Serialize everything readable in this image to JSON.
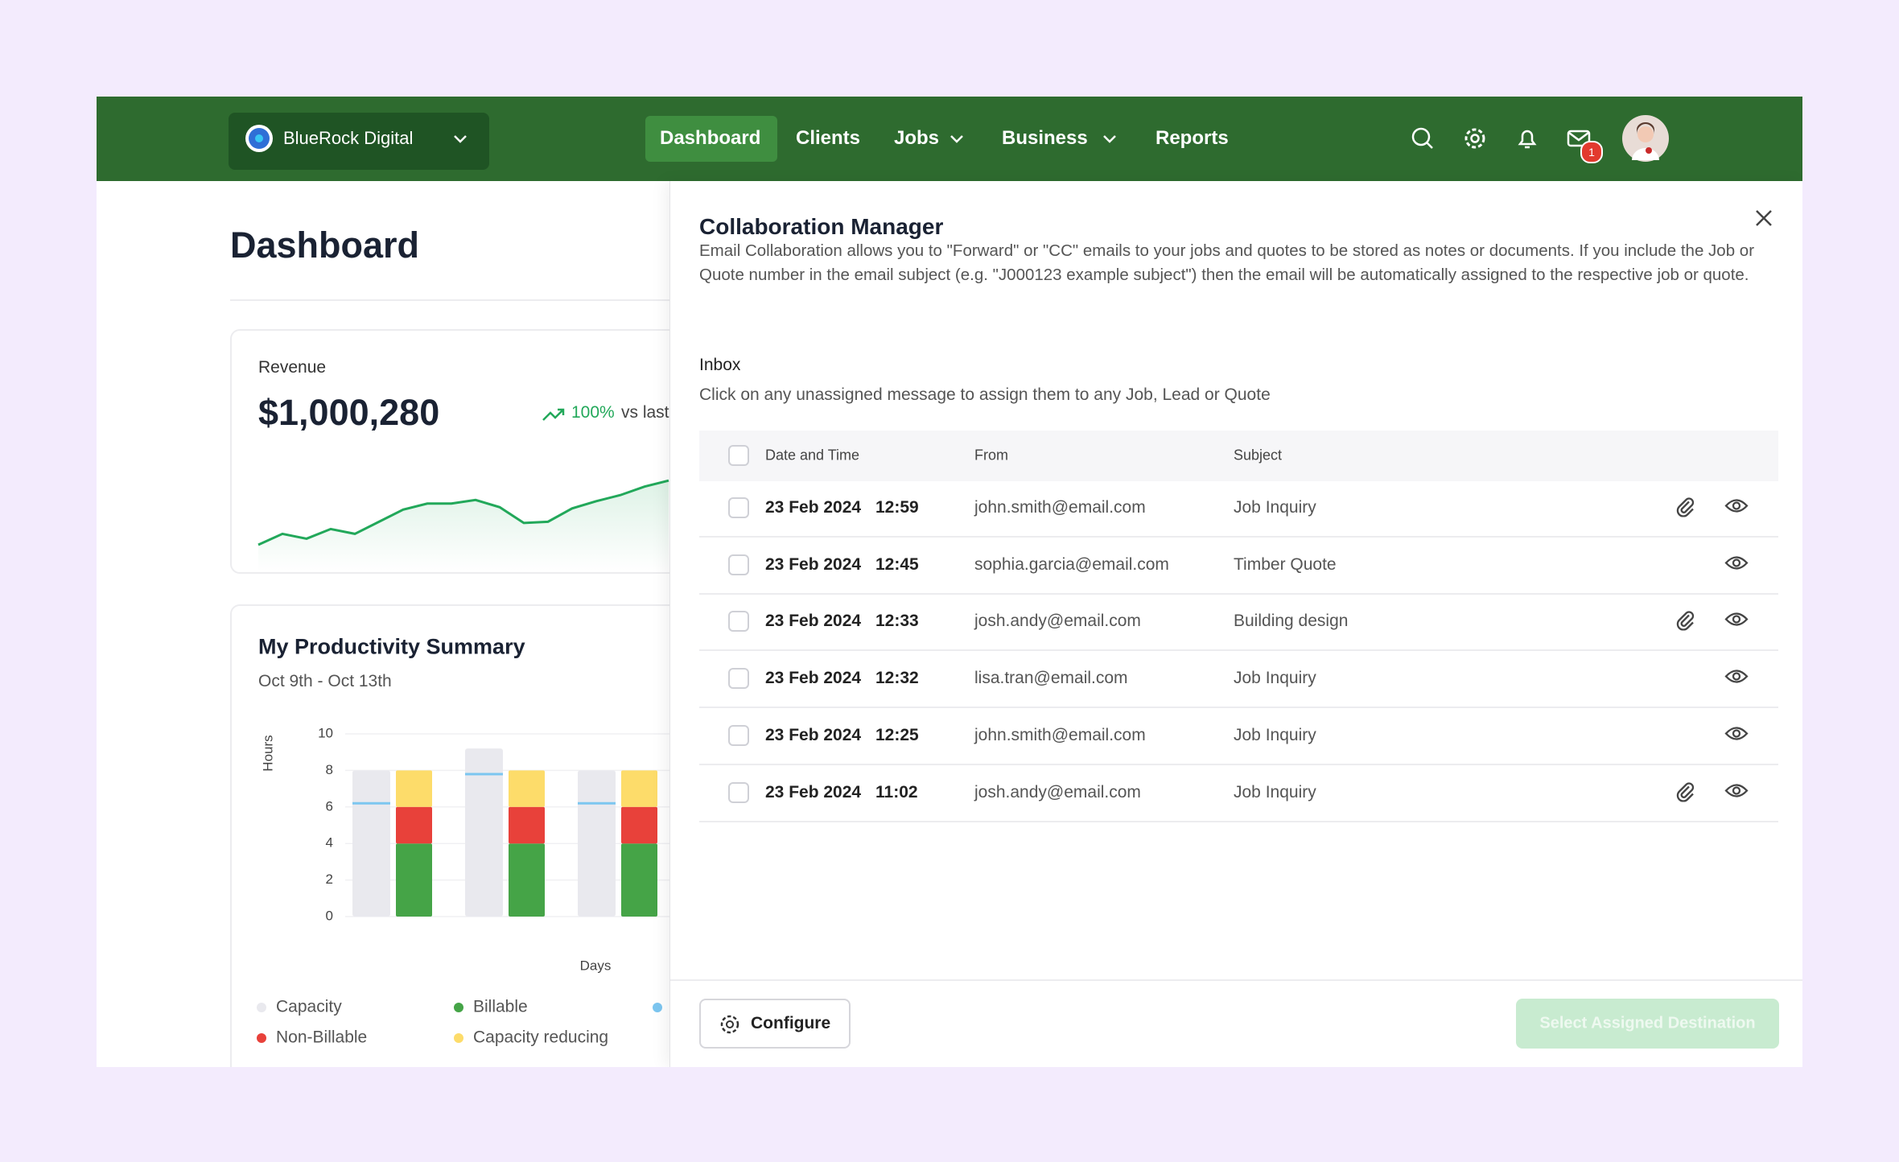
{
  "header": {
    "brand": "BlueRock Digital",
    "nav": [
      "Dashboard",
      "Clients",
      "Jobs",
      "Business",
      "Reports"
    ],
    "mail_badge": "1"
  },
  "dashboard": {
    "title": "Dashboard",
    "revenue": {
      "label": "Revenue",
      "amount": "$1,000,280",
      "change": "100%",
      "compare": "vs last"
    },
    "productivity": {
      "title": "My Productivity Summary",
      "range": "Oct 9th - Oct 13th"
    }
  },
  "chart_data": [
    {
      "type": "line",
      "color": "#22a85a",
      "values": [
        10,
        19,
        15,
        23,
        19,
        29,
        39,
        44,
        44,
        47,
        41,
        28,
        29,
        40,
        46,
        51,
        58,
        63
      ]
    },
    {
      "type": "bar",
      "ylabel": "Hours",
      "xlabel": "Days",
      "categories": [
        null,
        null,
        null
      ],
      "ylim": [
        0,
        10
      ],
      "yticks": [
        0,
        2,
        4,
        6,
        8,
        10
      ],
      "grid": true,
      "series": [
        {
          "name": "Capacity",
          "color": "#e9e9ee",
          "values": [
            8,
            9.2,
            8
          ]
        },
        {
          "name": "Billable",
          "color": "#45a447",
          "values": [
            4,
            4,
            4
          ]
        },
        {
          "name": "Non-Billable",
          "color": "#e8413a",
          "values": [
            2,
            2,
            2
          ]
        },
        {
          "name": "Capacity reducing",
          "color": "#fddc6a",
          "values": [
            2,
            2,
            2
          ]
        },
        {
          "color": "#7cc6f0",
          "values": [
            6.2,
            7.8,
            6.2
          ]
        }
      ]
    }
  ],
  "modal": {
    "title": "Collaboration Manager",
    "description": "Email Collaboration allows you to \"Forward\" or \"CC\" emails to your jobs and quotes to be stored as notes or documents. If you include the Job or Quote number in the email subject (e.g. \"J000123 example subject\") then the email will be automatically assigned to the respective job or quote.",
    "inbox_title": "Inbox",
    "inbox_hint": "Click on any unassigned message to assign them to any Job, Lead or Quote",
    "columns": [
      "Date and Time",
      "From",
      "Subject"
    ],
    "rows": [
      {
        "date": "23 Feb 2024",
        "time": "12:59",
        "from": "john.smith@email.com",
        "subject": "Job Inquiry",
        "attachment": true
      },
      {
        "date": "23 Feb 2024",
        "time": "12:45",
        "from": "sophia.garcia@email.com",
        "subject": "Timber Quote",
        "attachment": false
      },
      {
        "date": "23 Feb 2024",
        "time": "12:33",
        "from": "josh.andy@email.com",
        "subject": "Building design",
        "attachment": true
      },
      {
        "date": "23 Feb 2024",
        "time": "12:32",
        "from": "lisa.tran@email.com",
        "subject": "Job Inquiry",
        "attachment": false
      },
      {
        "date": "23 Feb 2024",
        "time": "12:25",
        "from": "john.smith@email.com",
        "subject": "Job Inquiry",
        "attachment": false
      },
      {
        "date": "23 Feb 2024",
        "time": "11:02",
        "from": "josh.andy@email.com",
        "subject": "Job Inquiry",
        "attachment": true
      }
    ],
    "configure": "Configure",
    "assign": "Select Assigned Destination"
  }
}
